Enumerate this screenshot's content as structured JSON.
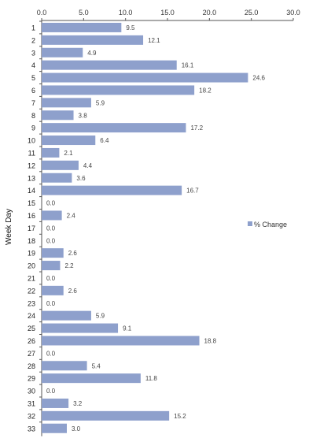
{
  "chart_data": {
    "type": "bar",
    "orientation": "horizontal",
    "ylabel": "Week Day",
    "xlim": [
      0,
      30
    ],
    "xticks": [
      "0.0",
      "5.0",
      "10.0",
      "15.0",
      "20.0",
      "25.0",
      "30.0"
    ],
    "xaxis_position": "top",
    "grid": false,
    "legend_position": "right",
    "bar_color": "#8ea0cc",
    "categories": [
      "1",
      "2",
      "3",
      "4",
      "5",
      "6",
      "7",
      "8",
      "9",
      "10",
      "11",
      "12",
      "13",
      "14",
      "15",
      "16",
      "17",
      "18",
      "19",
      "20",
      "21",
      "22",
      "23",
      "24",
      "25",
      "26",
      "27",
      "28",
      "29",
      "30",
      "31",
      "32",
      "33"
    ],
    "series": [
      {
        "name": "% Change",
        "values": [
          9.5,
          12.1,
          4.9,
          16.1,
          24.6,
          18.2,
          5.9,
          3.8,
          17.2,
          6.4,
          2.1,
          4.4,
          3.6,
          16.7,
          0.0,
          2.4,
          0.0,
          0.0,
          2.6,
          2.2,
          0.0,
          2.6,
          0.0,
          5.9,
          9.1,
          18.8,
          0.0,
          5.4,
          11.8,
          0.0,
          3.2,
          15.2,
          3.0
        ],
        "labels": [
          "9.5",
          "12.1",
          "4.9",
          "16.1",
          "24.6",
          "18.2",
          "5.9",
          "3.8",
          "17.2",
          "6.4",
          "2.1",
          "4.4",
          "3.6",
          "16.7",
          "0.0",
          "2.4",
          "0.0",
          "0.0",
          "2.6",
          "2.2",
          "0.0",
          "2.6",
          "0.0",
          "5.9",
          "9.1",
          "18.8",
          "0.0",
          "5.4",
          "11.8",
          "0.0",
          "3.2",
          "15.2",
          "3.0"
        ]
      }
    ]
  }
}
